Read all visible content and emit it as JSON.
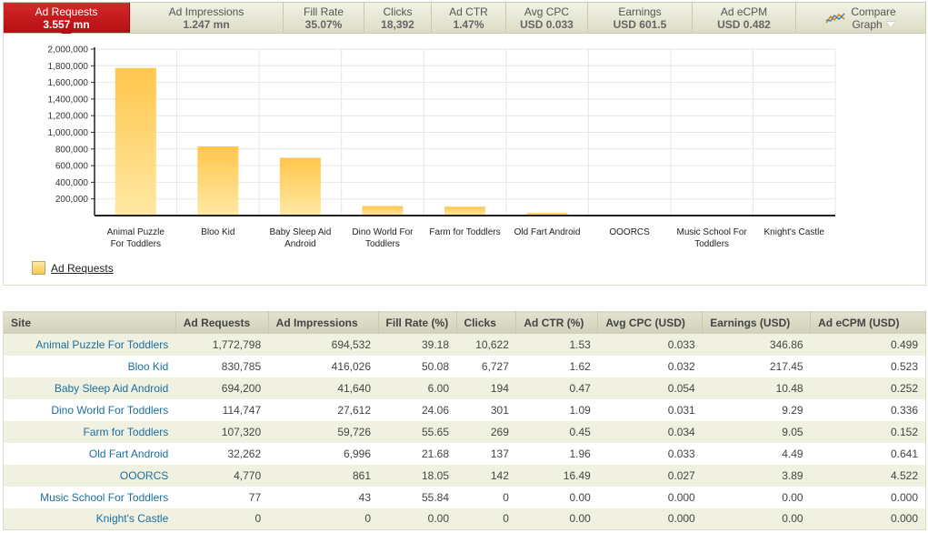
{
  "metrics": [
    {
      "label": "Ad Requests",
      "value": "3.557 mn",
      "active": true
    },
    {
      "label": "Ad Impressions",
      "value": "1.247 mn",
      "active": false
    },
    {
      "label": "Fill Rate",
      "value": "35.07%",
      "active": false
    },
    {
      "label": "Clicks",
      "value": "18,392",
      "active": false
    },
    {
      "label": "Ad CTR",
      "value": "1.47%",
      "active": false
    },
    {
      "label": "Avg CPC",
      "value": "USD 0.033",
      "active": false
    },
    {
      "label": "Earnings",
      "value": "USD 601.5",
      "active": false
    },
    {
      "label": "Ad eCPM",
      "value": "USD 0.482",
      "active": false
    }
  ],
  "compare_graph": {
    "line1": "Compare",
    "line2": "Graph",
    "icon": "line-chart-icon"
  },
  "legend": {
    "label": "Ad Requests"
  },
  "chart_data": {
    "type": "bar",
    "categories": [
      [
        "Animal Puzzle",
        "For Toddlers"
      ],
      [
        "Bloo Kid"
      ],
      [
        "Baby Sleep Aid",
        "Android"
      ],
      [
        "Dino World For",
        "Toddlers"
      ],
      [
        "Farm for Toddlers"
      ],
      [
        "Old Fart Android"
      ],
      [
        "OOORCS"
      ],
      [
        "Music School For",
        "Toddlers"
      ],
      [
        "Knight's Castle"
      ]
    ],
    "series": [
      {
        "name": "Ad Requests",
        "values": [
          1772798,
          830785,
          694200,
          114747,
          107320,
          32262,
          4770,
          77,
          0
        ]
      }
    ],
    "ylim": [
      0,
      2000000
    ],
    "yticks": [
      "200,000",
      "400,000",
      "600,000",
      "800,000",
      "1,000,000",
      "1,200,000",
      "1,400,000",
      "1,600,000",
      "1,800,000",
      "2,000,000"
    ],
    "ytick_values": [
      200000,
      400000,
      600000,
      800000,
      1000000,
      1200000,
      1400000,
      1600000,
      1800000,
      2000000
    ],
    "grid": true,
    "legend": "bottom-left",
    "colors": {
      "bar_top": "#ffc64c",
      "bar_bottom": "#ffe9a4",
      "grid": "#e6e6e6"
    }
  },
  "table": {
    "columns": [
      "Site",
      "Ad Requests",
      "Ad Impressions",
      "Fill Rate (%)",
      "Clicks",
      "Ad CTR (%)",
      "Avg CPC (USD)",
      "Earnings (USD)",
      "Ad eCPM (USD)"
    ],
    "rows": [
      [
        "Animal Puzzle For Toddlers",
        "1,772,798",
        "694,532",
        "39.18",
        "10,622",
        "1.53",
        "0.033",
        "346.86",
        "0.499"
      ],
      [
        "Bloo Kid",
        "830,785",
        "416,026",
        "50.08",
        "6,727",
        "1.62",
        "0.032",
        "217.45",
        "0.523"
      ],
      [
        "Baby Sleep Aid Android",
        "694,200",
        "41,640",
        "6.00",
        "194",
        "0.47",
        "0.054",
        "10.48",
        "0.252"
      ],
      [
        "Dino World For Toddlers",
        "114,747",
        "27,612",
        "24.06",
        "301",
        "1.09",
        "0.031",
        "9.29",
        "0.336"
      ],
      [
        "Farm for Toddlers",
        "107,320",
        "59,726",
        "55.65",
        "269",
        "0.45",
        "0.034",
        "9.05",
        "0.152"
      ],
      [
        "Old Fart Android",
        "32,262",
        "6,996",
        "21.68",
        "137",
        "1.96",
        "0.033",
        "4.49",
        "0.641"
      ],
      [
        "OOORCS",
        "4,770",
        "861",
        "18.05",
        "142",
        "16.49",
        "0.027",
        "3.89",
        "4.522"
      ],
      [
        "Music School For Toddlers",
        "77",
        "43",
        "55.84",
        "0",
        "0.00",
        "0.000",
        "0.00",
        "0.000"
      ],
      [
        "Knight's Castle",
        "0",
        "0",
        "0.00",
        "0",
        "0.00",
        "0.000",
        "0.00",
        "0.000"
      ]
    ]
  }
}
